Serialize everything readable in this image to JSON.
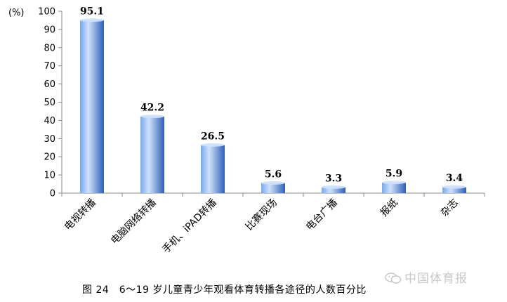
{
  "chart_data": {
    "type": "bar",
    "unit_label": "(%)",
    "categories": [
      "电视转播",
      "电脑网络转播",
      "手机、iPAD转播",
      "比赛现场",
      "电台广播",
      "报纸",
      "杂志"
    ],
    "values": [
      95.1,
      42.2,
      26.5,
      5.6,
      3.3,
      5.9,
      3.4
    ],
    "value_labels": [
      "95.1",
      "42.2",
      "26.5",
      "5.6",
      "3.3",
      "5.9",
      "3.4"
    ],
    "ylim": [
      0,
      100
    ],
    "yticks": [
      0,
      10,
      20,
      30,
      40,
      50,
      60,
      70,
      80,
      90,
      100
    ],
    "grid": false,
    "bar_color_light": "#cfe2fb",
    "bar_color_mid": "#7aa9ea",
    "bar_color_dark": "#2f5fb8"
  },
  "caption": "图 24　6～19 岁儿童青少年观看体育转播各途径的人数百分比",
  "watermark": {
    "icon": "wechat-icon",
    "text": "中国体育报"
  }
}
